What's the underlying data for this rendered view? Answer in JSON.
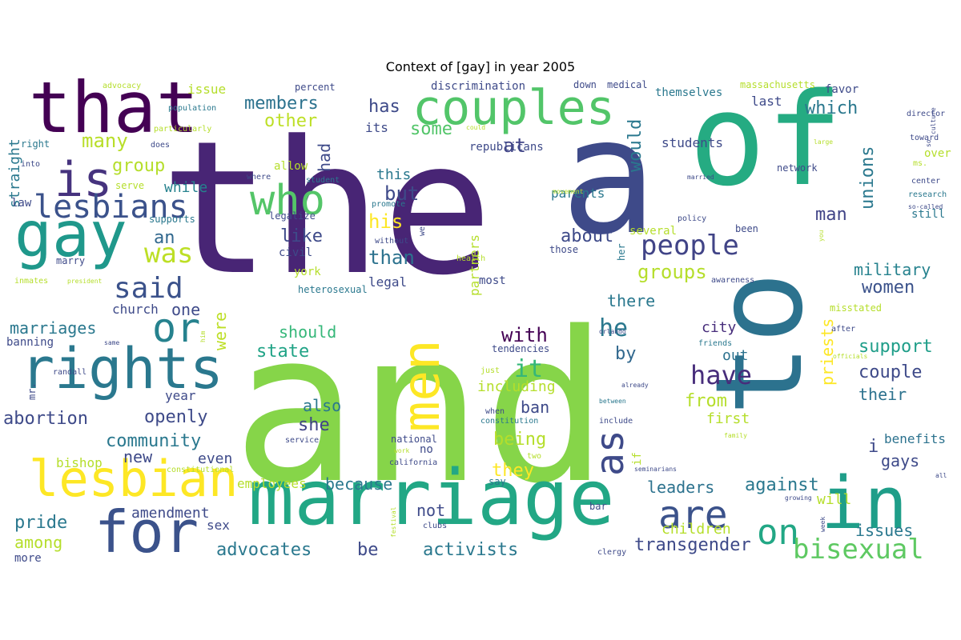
{
  "chart_data": {
    "type": "wordcloud",
    "title": "Context of [gay] in year 2005",
    "words": [
      {
        "text": "the",
        "size": 230,
        "color": "#482575"
      },
      {
        "text": "and",
        "size": 260,
        "color": "#86d549"
      },
      {
        "text": "a",
        "size": 200,
        "color": "#3e4a89"
      },
      {
        "text": "of",
        "size": 160,
        "color": "#25ab82"
      },
      {
        "text": "to",
        "size": 150,
        "color": "#2c728e"
      },
      {
        "text": "marriage",
        "size": 95,
        "color": "#22a785"
      },
      {
        "text": "that",
        "size": 88,
        "color": "#440154"
      },
      {
        "text": "couples",
        "size": 60,
        "color": "#52c569"
      },
      {
        "text": "gay",
        "size": 78,
        "color": "#1f988b"
      },
      {
        "text": "rights",
        "size": 70,
        "color": "#2a788e"
      },
      {
        "text": "lesbian",
        "size": 62,
        "color": "#fde725"
      },
      {
        "text": "for",
        "size": 72,
        "color": "#3b528b"
      },
      {
        "text": "in",
        "size": 90,
        "color": "#1f9e89"
      },
      {
        "text": "men",
        "size": 64,
        "color": "#fde725"
      },
      {
        "text": "is",
        "size": 60,
        "color": "#46337e"
      },
      {
        "text": "who",
        "size": 52,
        "color": "#54c568"
      },
      {
        "text": "or",
        "size": 50,
        "color": "#26828e"
      },
      {
        "text": "lesbians",
        "size": 40,
        "color": "#3b528b"
      },
      {
        "text": "as",
        "size": 48,
        "color": "#3e4a89"
      },
      {
        "text": "are",
        "size": 48,
        "color": "#3b528b"
      },
      {
        "text": "on",
        "size": 44,
        "color": "#22a785"
      },
      {
        "text": "said",
        "size": 36,
        "color": "#3b528b"
      },
      {
        "text": "was",
        "size": 34,
        "color": "#bddf26"
      },
      {
        "text": "people",
        "size": 34,
        "color": "#414487"
      },
      {
        "text": "bisexual",
        "size": 34,
        "color": "#5ec962"
      },
      {
        "text": "have",
        "size": 32,
        "color": "#472d7b"
      },
      {
        "text": "it",
        "size": 30,
        "color": "#35b779"
      },
      {
        "text": "he",
        "size": 30,
        "color": "#2a788e"
      },
      {
        "text": "many",
        "size": 24,
        "color": "#b8de29"
      },
      {
        "text": "members",
        "size": 22,
        "color": "#2c728e"
      },
      {
        "text": "other",
        "size": 22,
        "color": "#bddf26"
      },
      {
        "text": "has",
        "size": 22,
        "color": "#3e4a89"
      },
      {
        "text": "some",
        "size": 22,
        "color": "#52c569"
      },
      {
        "text": "at",
        "size": 24,
        "color": "#414487"
      },
      {
        "text": "but",
        "size": 24,
        "color": "#3e4a89"
      },
      {
        "text": "his",
        "size": 24,
        "color": "#fde725"
      },
      {
        "text": "than",
        "size": 24,
        "color": "#2c728e"
      },
      {
        "text": "like",
        "size": 22,
        "color": "#3e4a89"
      },
      {
        "text": "an",
        "size": 22,
        "color": "#31688e"
      },
      {
        "text": "group",
        "size": 22,
        "color": "#b5de2b"
      },
      {
        "text": "while",
        "size": 18,
        "color": "#26828e"
      },
      {
        "text": "would",
        "size": 22,
        "color": "#2a788e"
      },
      {
        "text": "which",
        "size": 22,
        "color": "#2a788e"
      },
      {
        "text": "unions",
        "size": 22,
        "color": "#2a788e"
      },
      {
        "text": "man",
        "size": 22,
        "color": "#414487"
      },
      {
        "text": "about",
        "size": 22,
        "color": "#3e4a89"
      },
      {
        "text": "groups",
        "size": 24,
        "color": "#b5de2b"
      },
      {
        "text": "military",
        "size": 20,
        "color": "#26828e"
      },
      {
        "text": "women",
        "size": 22,
        "color": "#3b528b"
      },
      {
        "text": "there",
        "size": 20,
        "color": "#2a788e"
      },
      {
        "text": "with",
        "size": 24,
        "color": "#440154"
      },
      {
        "text": "by",
        "size": 22,
        "color": "#31688e"
      },
      {
        "text": "marriages",
        "size": 20,
        "color": "#2a788e"
      },
      {
        "text": "one",
        "size": 20,
        "color": "#3e4a89"
      },
      {
        "text": "were",
        "size": 20,
        "color": "#bddf26"
      },
      {
        "text": "should",
        "size": 20,
        "color": "#35b779"
      },
      {
        "text": "state",
        "size": 22,
        "color": "#20a386"
      },
      {
        "text": "also",
        "size": 20,
        "color": "#2a788e"
      },
      {
        "text": "she",
        "size": 22,
        "color": "#414487"
      },
      {
        "text": "city",
        "size": 18,
        "color": "#472d7b"
      },
      {
        "text": "out",
        "size": 18,
        "color": "#2c728e"
      },
      {
        "text": "support",
        "size": 22,
        "color": "#1f9e89"
      },
      {
        "text": "couple",
        "size": 22,
        "color": "#3e4a89"
      },
      {
        "text": "their",
        "size": 20,
        "color": "#2c728e"
      },
      {
        "text": "priests",
        "size": 20,
        "color": "#fde725"
      },
      {
        "text": "abortion",
        "size": 22,
        "color": "#3e4a89"
      },
      {
        "text": "openly",
        "size": 22,
        "color": "#3e4a89"
      },
      {
        "text": "community",
        "size": 22,
        "color": "#2a788e"
      },
      {
        "text": "including",
        "size": 18,
        "color": "#b5de2b"
      },
      {
        "text": "ban",
        "size": 20,
        "color": "#3e4a89"
      },
      {
        "text": "from",
        "size": 22,
        "color": "#b5de2b"
      },
      {
        "text": "first",
        "size": 18,
        "color": "#b5de2b"
      },
      {
        "text": "being",
        "size": 22,
        "color": "#b5de2b"
      },
      {
        "text": "they",
        "size": 22,
        "color": "#fde725"
      },
      {
        "text": "gays",
        "size": 20,
        "color": "#3e4a89"
      },
      {
        "text": "benefits",
        "size": 16,
        "color": "#2c728e"
      },
      {
        "text": "against",
        "size": 22,
        "color": "#2a788e"
      },
      {
        "text": "because",
        "size": 20,
        "color": "#2a788e"
      },
      {
        "text": "new",
        "size": 20,
        "color": "#3e4a89"
      },
      {
        "text": "even",
        "size": 18,
        "color": "#3e4a89"
      },
      {
        "text": "year",
        "size": 16,
        "color": "#3e4a89"
      },
      {
        "text": "leaders",
        "size": 20,
        "color": "#2c728e"
      },
      {
        "text": "will",
        "size": 18,
        "color": "#b5de2b"
      },
      {
        "text": "pride",
        "size": 22,
        "color": "#2a788e"
      },
      {
        "text": "amendment",
        "size": 18,
        "color": "#3e4a89"
      },
      {
        "text": "not",
        "size": 20,
        "color": "#3e4a89"
      },
      {
        "text": "children",
        "size": 18,
        "color": "#b5de2b"
      },
      {
        "text": "transgender",
        "size": 22,
        "color": "#3e4a89"
      },
      {
        "text": "issues",
        "size": 20,
        "color": "#2a788e"
      },
      {
        "text": "among",
        "size": 20,
        "color": "#b5de2b"
      },
      {
        "text": "sex",
        "size": 16,
        "color": "#3e4a89"
      },
      {
        "text": "advocates",
        "size": 22,
        "color": "#2a788e"
      },
      {
        "text": "be",
        "size": 22,
        "color": "#3e4a89"
      },
      {
        "text": "activists",
        "size": 22,
        "color": "#2a788e"
      },
      {
        "text": "employees",
        "size": 16,
        "color": "#b5de2b"
      },
      {
        "text": "bishop",
        "size": 16,
        "color": "#b5de2b"
      },
      {
        "text": "straight",
        "size": 18,
        "color": "#2a788e"
      },
      {
        "text": "law",
        "size": 14,
        "color": "#3e4a89"
      },
      {
        "text": "church",
        "size": 16,
        "color": "#3e4a89"
      },
      {
        "text": "legal",
        "size": 16,
        "color": "#3e4a89"
      },
      {
        "text": "issue",
        "size": 16,
        "color": "#b5de2b"
      },
      {
        "text": "had",
        "size": 20,
        "color": "#3e4a89"
      },
      {
        "text": "this",
        "size": 18,
        "color": "#2a788e"
      },
      {
        "text": "its",
        "size": 16,
        "color": "#3e4a89"
      },
      {
        "text": "parents",
        "size": 16,
        "color": "#2a788e"
      },
      {
        "text": "partners",
        "size": 16,
        "color": "#b5de2b"
      },
      {
        "text": "students",
        "size": 16,
        "color": "#3e4a89"
      },
      {
        "text": "themselves",
        "size": 14,
        "color": "#2a788e"
      },
      {
        "text": "last",
        "size": 16,
        "color": "#3e4a89"
      },
      {
        "text": "favor",
        "size": 14,
        "color": "#3e4a89"
      },
      {
        "text": "massachusetts",
        "size": 12,
        "color": "#b5de2b"
      },
      {
        "text": "medical",
        "size": 12,
        "color": "#3e4a89"
      },
      {
        "text": "down",
        "size": 12,
        "color": "#3e4a89"
      },
      {
        "text": "discrimination",
        "size": 14,
        "color": "#3e4a89"
      },
      {
        "text": "percent",
        "size": 12,
        "color": "#3e4a89"
      },
      {
        "text": "republicans",
        "size": 14,
        "color": "#3e4a89"
      },
      {
        "text": "advocacy",
        "size": 10,
        "color": "#b5de2b"
      },
      {
        "text": "population",
        "size": 10,
        "color": "#2a788e"
      },
      {
        "text": "particularly",
        "size": 10,
        "color": "#b5de2b"
      },
      {
        "text": "right",
        "size": 12,
        "color": "#2a788e"
      },
      {
        "text": "does",
        "size": 10,
        "color": "#3e4a89"
      },
      {
        "text": "into",
        "size": 10,
        "color": "#3e4a89"
      },
      {
        "text": "serve",
        "size": 12,
        "color": "#b5de2b"
      },
      {
        "text": "supports",
        "size": 12,
        "color": "#2a788e"
      },
      {
        "text": "marry",
        "size": 12,
        "color": "#3e4a89"
      },
      {
        "text": "inmates",
        "size": 10,
        "color": "#b5de2b"
      },
      {
        "text": "president",
        "size": 8,
        "color": "#b5de2b"
      },
      {
        "text": "allow",
        "size": 14,
        "color": "#b5de2b"
      },
      {
        "text": "where",
        "size": 10,
        "color": "#3e4a89"
      },
      {
        "text": "student",
        "size": 10,
        "color": "#2a788e"
      },
      {
        "text": "legalize",
        "size": 12,
        "color": "#3e4a89"
      },
      {
        "text": "promote",
        "size": 10,
        "color": "#2a788e"
      },
      {
        "text": "without",
        "size": 10,
        "color": "#3e4a89"
      },
      {
        "text": "civil",
        "size": 14,
        "color": "#3e4a89"
      },
      {
        "text": "york",
        "size": 14,
        "color": "#b5de2b"
      },
      {
        "text": "heterosexual",
        "size": 12,
        "color": "#2a788e"
      },
      {
        "text": "could",
        "size": 8,
        "color": "#b5de2b"
      },
      {
        "text": "health",
        "size": 10,
        "color": "#b5de2b"
      },
      {
        "text": "most",
        "size": 14,
        "color": "#3e4a89"
      },
      {
        "text": "several",
        "size": 14,
        "color": "#b5de2b"
      },
      {
        "text": "those",
        "size": 12,
        "color": "#3e4a89"
      },
      {
        "text": "been",
        "size": 12,
        "color": "#3e4a89"
      },
      {
        "text": "her",
        "size": 12,
        "color": "#2a788e"
      },
      {
        "text": "movement",
        "size": 8,
        "color": "#b5de2b"
      },
      {
        "text": "married",
        "size": 8,
        "color": "#3e4a89"
      },
      {
        "text": "policy",
        "size": 10,
        "color": "#3e4a89"
      },
      {
        "text": "network",
        "size": 12,
        "color": "#3e4a89"
      },
      {
        "text": "large",
        "size": 8,
        "color": "#b5de2b"
      },
      {
        "text": "director",
        "size": 10,
        "color": "#3e4a89"
      },
      {
        "text": "toward",
        "size": 10,
        "color": "#3e4a89"
      },
      {
        "text": "ms.",
        "size": 10,
        "color": "#b5de2b"
      },
      {
        "text": "center",
        "size": 10,
        "color": "#3e4a89"
      },
      {
        "text": "research",
        "size": 10,
        "color": "#2a788e"
      },
      {
        "text": "so-called",
        "size": 8,
        "color": "#3e4a89"
      },
      {
        "text": "still",
        "size": 14,
        "color": "#2a788e"
      },
      {
        "text": "over",
        "size": 14,
        "color": "#b5de2b"
      },
      {
        "text": "culture",
        "size": 8,
        "color": "#3e4a89"
      },
      {
        "text": "so",
        "size": 8,
        "color": "#3e4a89"
      },
      {
        "text": "you",
        "size": 8,
        "color": "#b5de2b"
      },
      {
        "text": "awareness",
        "size": 10,
        "color": "#3e4a89"
      },
      {
        "text": "misstated",
        "size": 12,
        "color": "#b5de2b"
      },
      {
        "text": "after",
        "size": 10,
        "color": "#3e4a89"
      },
      {
        "text": "officials",
        "size": 8,
        "color": "#b5de2b"
      },
      {
        "text": "orlando",
        "size": 8,
        "color": "#3e4a89"
      },
      {
        "text": "friends",
        "size": 10,
        "color": "#2a788e"
      },
      {
        "text": "tendencies",
        "size": 12,
        "color": "#3e4a89"
      },
      {
        "text": "just",
        "size": 10,
        "color": "#b5de2b"
      },
      {
        "text": "already",
        "size": 8,
        "color": "#3e4a89"
      },
      {
        "text": "when",
        "size": 10,
        "color": "#3e4a89"
      },
      {
        "text": "constitution",
        "size": 10,
        "color": "#2a788e"
      },
      {
        "text": "between",
        "size": 8,
        "color": "#2a788e"
      },
      {
        "text": "include",
        "size": 10,
        "color": "#3e4a89"
      },
      {
        "text": "family",
        "size": 8,
        "color": "#b5de2b"
      },
      {
        "text": "national",
        "size": 12,
        "color": "#3e4a89"
      },
      {
        "text": "work",
        "size": 8,
        "color": "#b5de2b"
      },
      {
        "text": "california",
        "size": 10,
        "color": "#3e4a89"
      },
      {
        "text": "service",
        "size": 10,
        "color": "#3e4a89"
      },
      {
        "text": "two",
        "size": 10,
        "color": "#b5de2b"
      },
      {
        "text": "no",
        "size": 14,
        "color": "#3e4a89"
      },
      {
        "text": "if",
        "size": 14,
        "color": "#b5de2b"
      },
      {
        "text": "seminarians",
        "size": 8,
        "color": "#3e4a89"
      },
      {
        "text": "say",
        "size": 12,
        "color": "#2a788e"
      },
      {
        "text": "bar",
        "size": 12,
        "color": "#3e4a89"
      },
      {
        "text": "growing",
        "size": 8,
        "color": "#3e4a89"
      },
      {
        "text": "all",
        "size": 8,
        "color": "#3e4a89"
      },
      {
        "text": "clubs",
        "size": 10,
        "color": "#3e4a89"
      },
      {
        "text": "festival",
        "size": 8,
        "color": "#b5de2b"
      },
      {
        "text": "week",
        "size": 8,
        "color": "#3e4a89"
      },
      {
        "text": "clergy",
        "size": 10,
        "color": "#3e4a89"
      },
      {
        "text": "more",
        "size": 14,
        "color": "#3e4a89"
      },
      {
        "text": "banning",
        "size": 14,
        "color": "#3e4a89"
      },
      {
        "text": "same",
        "size": 8,
        "color": "#3e4a89"
      },
      {
        "text": "randall",
        "size": 10,
        "color": "#3e4a89"
      },
      {
        "text": "mr.",
        "size": 12,
        "color": "#3e4a89"
      },
      {
        "text": "constitutional",
        "size": 10,
        "color": "#b5de2b"
      },
      {
        "text": "i",
        "size": 22,
        "color": "#3e4a89"
      },
      {
        "text": "we",
        "size": 10,
        "color": "#3e4a89"
      },
      {
        "text": "him",
        "size": 8,
        "color": "#b5de2b"
      }
    ]
  }
}
